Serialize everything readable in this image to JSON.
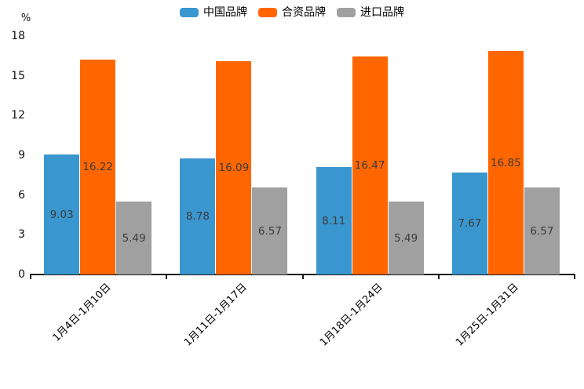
{
  "chart_data": {
    "type": "bar",
    "title": "",
    "ylabel": "%",
    "xlabel": "",
    "categories": [
      "1月4日-1月10日",
      "1月11日-1月17日",
      "1月18日-1月24日",
      "1月25日-1月31日"
    ],
    "series": [
      {
        "name": "中国品牌",
        "color": "#3A96CE",
        "values": [
          9.03,
          8.78,
          8.11,
          7.67
        ]
      },
      {
        "name": "合资品牌",
        "color": "#FF6600",
        "values": [
          16.22,
          16.09,
          16.47,
          16.85
        ]
      },
      {
        "name": "进口品牌",
        "color": "#A0A0A0",
        "values": [
          5.49,
          6.57,
          5.49,
          6.57
        ]
      }
    ],
    "yticks": [
      0,
      3,
      6,
      9,
      12,
      15,
      18
    ],
    "ylim": [
      0,
      18
    ],
    "value_label_decimals": 2,
    "legend_position": "top",
    "grid": false,
    "colors": {
      "axis": "#1a1a1a",
      "tick_text": "#111111",
      "value_text": "#3c3c3c",
      "background": "#ffffff"
    }
  }
}
